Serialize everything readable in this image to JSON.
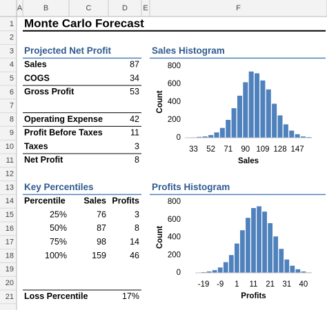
{
  "column_headers": [
    "A",
    "B",
    "C",
    "D",
    "E",
    "F"
  ],
  "row_numbers": [
    1,
    2,
    3,
    4,
    5,
    6,
    7,
    8,
    9,
    10,
    11,
    12,
    13,
    14,
    15,
    16,
    17,
    18,
    19,
    20,
    21
  ],
  "rows": [
    [
      "Monte Carlo Forecast",
      null,
      null
    ],
    [
      null,
      null,
      null
    ],
    [
      "Projected Net Profit",
      null,
      null
    ],
    [
      "Sales",
      null,
      87
    ],
    [
      "COGS",
      null,
      34
    ],
    [
      "Gross Profit",
      null,
      53
    ],
    [
      null,
      null,
      null
    ],
    [
      "Operating Expense",
      null,
      42
    ],
    [
      "Profit Before Taxes",
      null,
      11
    ],
    [
      "Taxes",
      null,
      3
    ],
    [
      "Net Profit",
      null,
      8
    ],
    [
      null,
      null,
      null
    ],
    [
      "Key Percentiles",
      null,
      null
    ],
    [
      "Percentile",
      "Sales",
      "Profits"
    ],
    [
      "25%",
      76,
      3
    ],
    [
      "50%",
      87,
      8
    ],
    [
      "75%",
      98,
      14
    ],
    [
      "100%",
      159,
      46
    ],
    [
      null,
      null,
      null
    ],
    [
      null,
      null,
      null
    ],
    [
      "Loss Percentile",
      null,
      "17%"
    ]
  ],
  "charts": [
    {
      "type": "bar",
      "title": "Sales Histogram",
      "xlabel": "Sales",
      "ylabel": "Count",
      "color": "#4f81bd",
      "categories": [
        null,
        "33",
        null,
        null,
        "52",
        null,
        null,
        "71",
        null,
        null,
        "90",
        null,
        null,
        "109",
        null,
        null,
        "128",
        null,
        null,
        "147",
        null,
        null
      ],
      "values": [
        2,
        5,
        10,
        15,
        30,
        60,
        110,
        200,
        330,
        470,
        620,
        740,
        720,
        640,
        540,
        380,
        250,
        150,
        80,
        40,
        15,
        8
      ],
      "ylim": [
        0,
        800
      ],
      "yticks": [
        0,
        200,
        400,
        600,
        800
      ]
    },
    {
      "type": "bar",
      "title": "Profits Histogram",
      "xlabel": "Profits",
      "ylabel": "Count",
      "color": "#4f81bd",
      "categories": [
        null,
        "-19",
        null,
        null,
        "-9",
        null,
        null,
        "1",
        null,
        null,
        "11",
        null,
        null,
        "21",
        null,
        null,
        "31",
        null,
        null,
        "40",
        null
      ],
      "values": [
        3,
        8,
        15,
        30,
        60,
        120,
        200,
        330,
        480,
        620,
        730,
        750,
        690,
        560,
        410,
        270,
        150,
        80,
        40,
        15,
        5
      ],
      "ylim": [
        0,
        800
      ],
      "yticks": [
        0,
        200,
        400,
        600,
        800
      ]
    }
  ]
}
